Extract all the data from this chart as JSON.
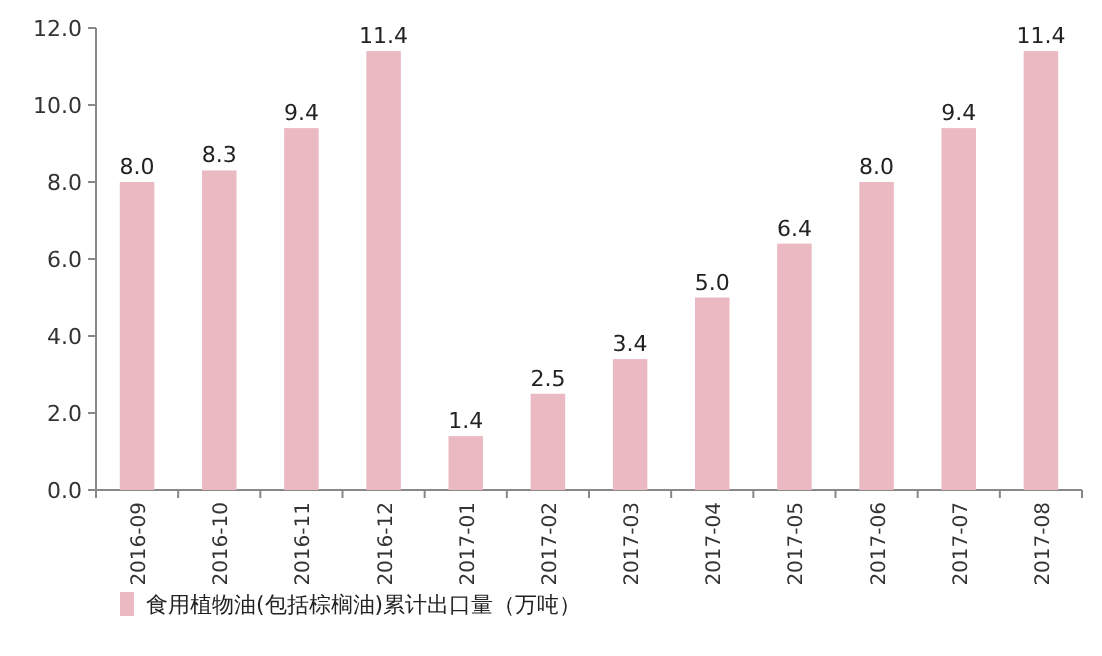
{
  "chart_data": {
    "type": "bar",
    "categories": [
      "2016-09",
      "2016-10",
      "2016-11",
      "2016-12",
      "2017-01",
      "2017-02",
      "2017-03",
      "2017-04",
      "2017-05",
      "2017-06",
      "2017-07",
      "2017-08"
    ],
    "series": [
      {
        "name": "食用植物油(包括棕榈油)累计出口量（万吨）",
        "color": "#ebb9c1",
        "values": [
          8.0,
          8.3,
          9.4,
          11.4,
          1.4,
          2.5,
          3.4,
          5.0,
          6.4,
          8.0,
          9.4,
          11.4
        ]
      }
    ],
    "ylim": [
      0,
      12
    ],
    "yticks": [
      {
        "value": 0,
        "label": "0.0"
      },
      {
        "value": 2,
        "label": "2.0"
      },
      {
        "value": 4,
        "label": "4.0"
      },
      {
        "value": 6,
        "label": "6.0"
      },
      {
        "value": 8,
        "label": "8.0"
      },
      {
        "value": 10,
        "label": "10.0"
      },
      {
        "value": 12,
        "label": "12.0"
      }
    ],
    "value_labels": [
      "8.0",
      "8.3",
      "9.4",
      "11.4",
      "1.4",
      "2.5",
      "3.4",
      "5.0",
      "6.4",
      "8.0",
      "9.4",
      "11.4"
    ],
    "legend": "bottom left"
  }
}
